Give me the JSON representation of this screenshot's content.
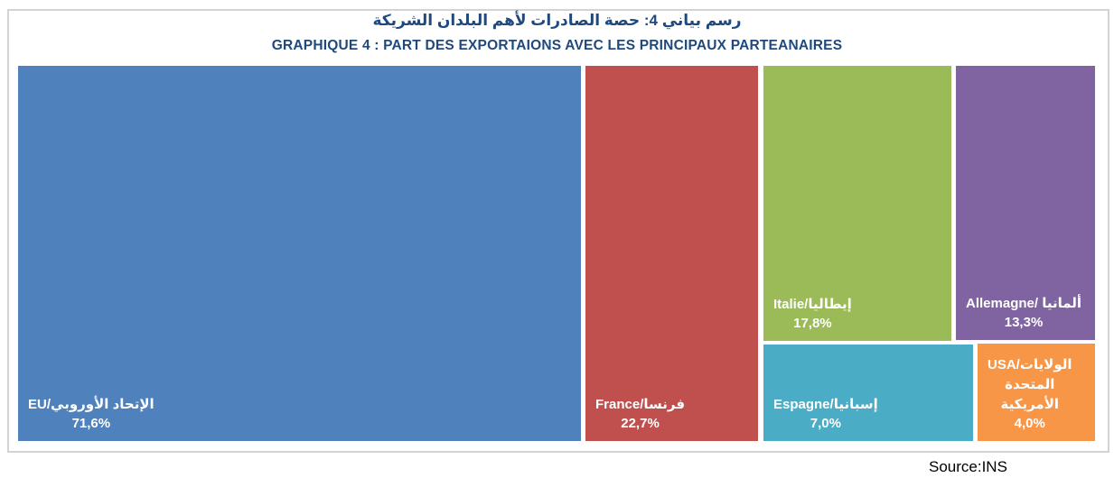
{
  "header": {
    "title_ar": "رسم بياني 4: حصة الصادرات لأهم البلدان الشريكة",
    "title_fr": "GRAPHIQUE 4 : PART DES EXPORTAIONS AVEC LES PRINCIPAUX PARTEANAIRES"
  },
  "treemap": {
    "blocks": [
      {
        "id": "eu",
        "name": "EU/الإتحاد الأوروبي",
        "pct": "71,6%",
        "value": 71.6,
        "color": "#4F81BD"
      },
      {
        "id": "france",
        "name": "France/فرنسا",
        "pct": "22,7%",
        "value": 22.7,
        "color": "#C0504D"
      },
      {
        "id": "italie",
        "name": "Italie/إيطاليا",
        "pct": "17,8%",
        "value": 17.8,
        "color": "#9BBB59"
      },
      {
        "id": "allemagne",
        "name": "Allemagne/ ألمانيا",
        "pct": "13,3%",
        "value": 13.3,
        "color": "#8064A2"
      },
      {
        "id": "espagne",
        "name": "Espagne/إسبانيا",
        "pct": "7,0%",
        "value": 7.0,
        "color": "#4BACC6"
      },
      {
        "id": "usa",
        "name": [
          "USA/الولايات",
          "المتحدة",
          "الأمريكية"
        ],
        "pct": "4,0%",
        "value": 4.0,
        "color": "#F79646"
      }
    ]
  },
  "footer": {
    "source": "Source:INS"
  },
  "chart_data": {
    "type": "treemap",
    "title": "GRAPHIQUE 4 : PART DES EXPORTAIONS AVEC LES PRINCIPAUX PARTEANAIRES",
    "title_arabic": "رسم بياني 4: حصة الصادرات لأهم البلدان الشريكة",
    "unit": "%",
    "decimal_separator": ",",
    "categories": [
      "EU/الإتحاد الأوروبي",
      "France/فرنسا",
      "Italie/إيطاليا",
      "Allemagne/ألمانيا",
      "Espagne/إسبانيا",
      "USA/الولايات المتحدة الأمريكية"
    ],
    "values": [
      71.6,
      22.7,
      17.8,
      13.3,
      7.0,
      4.0
    ],
    "colors": [
      "#4F81BD",
      "#C0504D",
      "#9BBB59",
      "#8064A2",
      "#4BACC6",
      "#F79646"
    ],
    "legend": "none",
    "source": "Source:INS"
  }
}
